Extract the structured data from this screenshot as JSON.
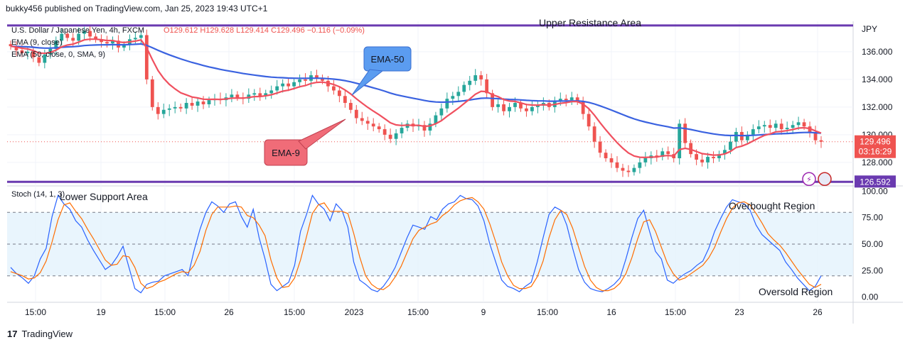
{
  "header": {
    "published": "bukky456 published on TradingView.com, Jan 25, 2023 19:43 UTC+1"
  },
  "footer": {
    "brand": "TradingView"
  },
  "colors": {
    "up": "#26a69a",
    "down": "#ef5350",
    "ema9": "#f0505f",
    "ema50": "#3a62e0",
    "level": "#6a3ab0",
    "callout50": "#5b9cf0",
    "callout9": "#f06c78"
  },
  "chart_data": [
    {
      "type": "candlestick",
      "title": "U.S. Dollar / Japanese Yen, 4h, FXCM",
      "ohlc_label": "O129.612 H129.628 L129.414 C129.496 −0.116 (−0.09%)",
      "indicator_labels": [
        "EMA (9, close)",
        "EMA (50, close, 0, SMA, 9)"
      ],
      "currency": "JPY",
      "ylim": [
        126.3,
        138.2
      ],
      "y_ticks": [
        128.0,
        130.0,
        132.0,
        134.0,
        136.0
      ],
      "x_ticks": [
        "15:00",
        "19",
        "15:00",
        "26",
        "15:00",
        "2023",
        "15:00",
        "9",
        "15:00",
        "16",
        "15:00",
        "23",
        "26"
      ],
      "last_price": "129.496",
      "countdown": "03:16:29",
      "levels": [
        {
          "name": "Upper Resistance Area",
          "value": 137.9
        },
        {
          "name": "Lower Support Area",
          "value": 126.592,
          "tag": "126.592"
        }
      ],
      "callouts": [
        "EMA-50",
        "EMA-9"
      ],
      "close": [
        136.4,
        136.1,
        135.9,
        136.0,
        135.6,
        135.2,
        135.8,
        136.2,
        136.8,
        137.3,
        137.0,
        136.8,
        137.3,
        137.5,
        137.1,
        136.9,
        136.7,
        136.6,
        136.8,
        136.3,
        136.5,
        136.9,
        137.0,
        137.2,
        134.0,
        132.0,
        131.5,
        131.8,
        131.9,
        132.0,
        131.9,
        132.3,
        132.1,
        132.4,
        132.2,
        132.5,
        132.6,
        132.5,
        132.7,
        132.9,
        132.7,
        132.6,
        132.9,
        133.0,
        132.8,
        133.0,
        133.2,
        133.5,
        133.7,
        133.5,
        133.8,
        134.0,
        133.9,
        134.3,
        134.1,
        133.9,
        133.5,
        133.2,
        132.8,
        132.3,
        131.8,
        131.2,
        131.0,
        130.8,
        130.6,
        130.4,
        130.0,
        129.7,
        130.1,
        130.5,
        130.8,
        130.6,
        130.7,
        130.3,
        130.8,
        131.4,
        131.9,
        132.6,
        132.8,
        133.1,
        133.6,
        133.9,
        134.3,
        134.0,
        133.0,
        132.0,
        132.2,
        131.7,
        132.0,
        132.3,
        131.9,
        131.7,
        132.0,
        132.1,
        132.3,
        132.0,
        132.4,
        132.6,
        132.5,
        132.7,
        132.4,
        131.5,
        130.6,
        129.5,
        128.7,
        128.3,
        128.0,
        127.6,
        127.4,
        127.3,
        127.6,
        128.0,
        128.3,
        128.5,
        128.4,
        128.8,
        128.6,
        128.3,
        130.8,
        129.4,
        128.6,
        128.2,
        128.0,
        128.4,
        128.3,
        128.6,
        128.9,
        129.5,
        130.2,
        129.6,
        130.0,
        130.4,
        130.6,
        130.7,
        130.5,
        130.8,
        130.4,
        130.5,
        130.7,
        130.9,
        130.6,
        130.2,
        129.6,
        129.496
      ],
      "stoch_pane": {
        "title": "Stoch (14, 1, 3)",
        "ylim": [
          -5,
          105
        ],
        "y_ticks": [
          0.0,
          25.0,
          50.0,
          75.0,
          100.0
        ],
        "band": [
          20,
          80
        ],
        "mid": 50,
        "annotations": [
          "Overbought Region",
          "Oversold Region"
        ],
        "k": [
          28,
          22,
          18,
          13,
          20,
          36,
          46,
          76,
          96,
          88,
          83,
          72,
          66,
          54,
          44,
          35,
          26,
          30,
          38,
          48,
          28,
          8,
          4,
          12,
          14,
          15,
          20,
          22,
          24,
          26,
          20,
          44,
          64,
          80,
          90,
          86,
          80,
          88,
          90,
          76,
          66,
          83,
          56,
          36,
          12,
          6,
          10,
          14,
          30,
          62,
          78,
          96,
          88,
          83,
          72,
          88,
          82,
          66,
          33,
          16,
          12,
          7,
          5,
          10,
          18,
          28,
          42,
          56,
          68,
          66,
          64,
          76,
          73,
          83,
          88,
          90,
          96,
          93,
          92,
          86,
          72,
          50,
          33,
          16,
          10,
          8,
          5,
          10,
          14,
          33,
          56,
          78,
          85,
          82,
          68,
          46,
          26,
          14,
          8,
          6,
          5,
          8,
          12,
          18,
          36,
          56,
          74,
          82,
          62,
          43,
          36,
          16,
          13,
          18,
          22,
          25,
          30,
          34,
          46,
          62,
          74,
          85,
          92,
          90,
          88,
          82,
          68,
          59,
          54,
          49,
          44,
          33,
          26,
          18,
          12,
          6,
          10,
          20
        ],
        "d": [
          24,
          22,
          20,
          17,
          18,
          23,
          34,
          52,
          73,
          87,
          89,
          81,
          74,
          64,
          55,
          45,
          35,
          30,
          31,
          39,
          38,
          28,
          13,
          8,
          10,
          14,
          16,
          19,
          22,
          24,
          23,
          30,
          43,
          63,
          78,
          85,
          85,
          85,
          86,
          85,
          77,
          75,
          68,
          58,
          35,
          18,
          9,
          10,
          18,
          35,
          57,
          79,
          87,
          89,
          81,
          81,
          81,
          79,
          60,
          38,
          20,
          12,
          8,
          7,
          11,
          19,
          29,
          42,
          55,
          63,
          66,
          69,
          71,
          77,
          81,
          87,
          91,
          93,
          94,
          90,
          83,
          69,
          52,
          33,
          20,
          11,
          8,
          8,
          10,
          19,
          34,
          56,
          73,
          82,
          78,
          65,
          47,
          29,
          16,
          9,
          6,
          6,
          8,
          13,
          22,
          37,
          55,
          71,
          73,
          62,
          47,
          32,
          22,
          16,
          18,
          22,
          26,
          30,
          37,
          47,
          61,
          74,
          84,
          89,
          90,
          87,
          79,
          70,
          60,
          54,
          49,
          42,
          34,
          26,
          19,
          12,
          9,
          12
        ]
      }
    }
  ]
}
